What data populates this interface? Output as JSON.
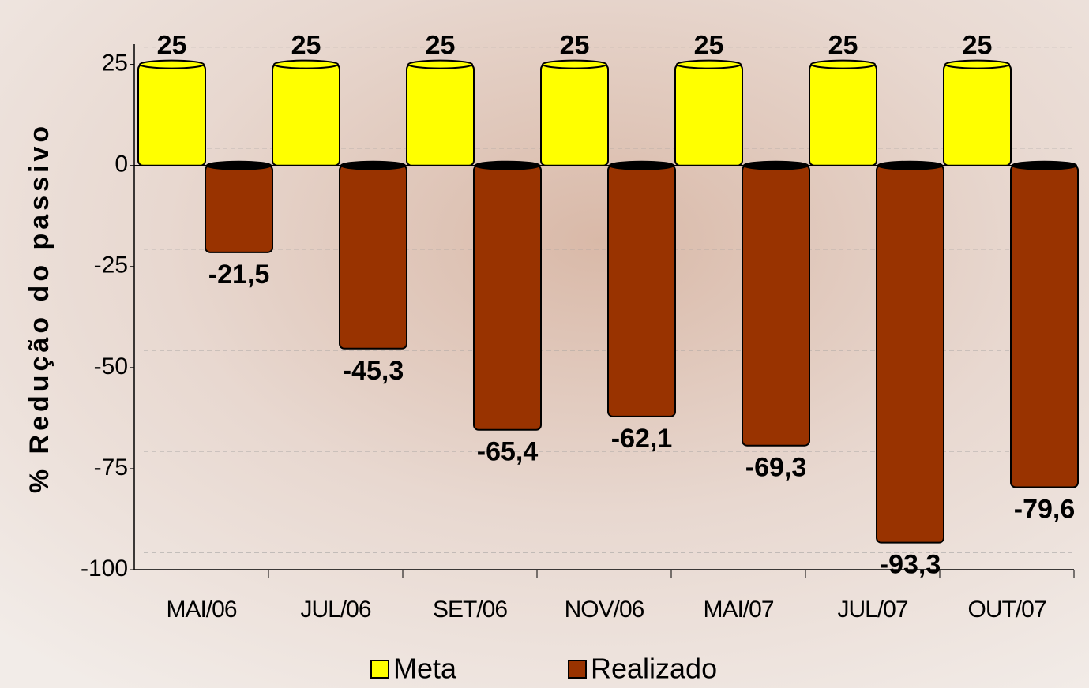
{
  "chart_data": {
    "type": "bar",
    "y_label": "% Redução do passivo",
    "categories": [
      "MAI/06",
      "JUL/06",
      "SET/06",
      "NOV/06",
      "MAI/07",
      "JUL/07",
      "OUT/07"
    ],
    "series": [
      {
        "name": "Meta",
        "color": "#ffff00",
        "values": [
          25,
          25,
          25,
          25,
          25,
          25,
          25
        ]
      },
      {
        "name": "Realizado",
        "color": "#993300",
        "values": [
          -21.5,
          -45.3,
          -65.4,
          -62.1,
          -69.3,
          -93.3,
          -79.6
        ],
        "value_labels": [
          "-21,5",
          "-45,3",
          "-65,4",
          "-62,1",
          "-69,3",
          "-93,3",
          "-79,6"
        ]
      }
    ],
    "ylim": [
      -100,
      30
    ],
    "yticks": [
      25,
      0,
      -25,
      -50,
      -75,
      -100
    ],
    "grid": true,
    "legend": "bottom"
  }
}
